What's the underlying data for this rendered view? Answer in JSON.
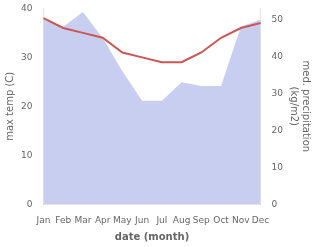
{
  "chart_data": {
    "type": "line",
    "categories": [
      "Jan",
      "Feb",
      "Mar",
      "Apr",
      "May",
      "Jun",
      "Jul",
      "Aug",
      "Sep",
      "Oct",
      "Nov",
      "Dec"
    ],
    "xlabel": "date (month)",
    "ylabel": "max temp (C)",
    "y2label": "med. precipitation\n(kg/m2)",
    "series": [
      {
        "type": "area",
        "axis": "y2",
        "color": "#aab4e8",
        "values": [
          50,
          48,
          52,
          45,
          36,
          28,
          28,
          33,
          32,
          32,
          48,
          50
        ]
      },
      {
        "type": "line",
        "axis": "y",
        "color": "#cc5555",
        "values": [
          38.0,
          36.0,
          35.0,
          34.0,
          31.0,
          30.0,
          29.0,
          29.0,
          31.0,
          34.0,
          36.0,
          37.0
        ]
      }
    ],
    "ylim": [
      0,
      40
    ],
    "yticks": [
      0,
      10,
      20,
      30,
      40
    ],
    "y2lim": [
      0,
      53
    ],
    "y2ticks": [
      0,
      10,
      20,
      30,
      40,
      50
    ],
    "grid": false
  }
}
